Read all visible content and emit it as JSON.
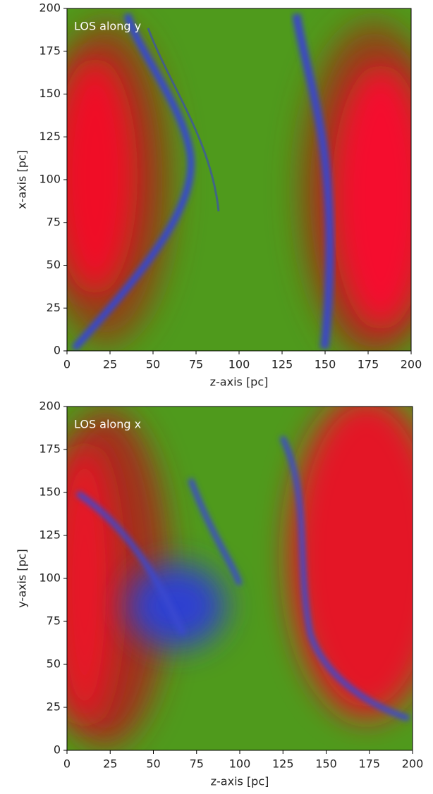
{
  "chart_data": [
    {
      "type": "image",
      "annotation": "LOS along y",
      "xlabel": "z-axis [pc]",
      "ylabel": "x-axis [pc]",
      "xlim": [
        0,
        200
      ],
      "ylim": [
        0,
        200
      ],
      "xticks": [
        0,
        25,
        50,
        75,
        100,
        125,
        150,
        175,
        200
      ],
      "yticks": [
        0,
        25,
        50,
        75,
        100,
        125,
        150,
        175,
        200
      ]
    },
    {
      "type": "image",
      "annotation": "LOS along x",
      "xlabel": "z-axis [pc]",
      "ylabel": "y-axis [pc]",
      "xlim": [
        0,
        200
      ],
      "ylim": [
        0,
        200
      ],
      "xticks": [
        0,
        25,
        50,
        75,
        100,
        125,
        150,
        175,
        200
      ],
      "yticks": [
        0,
        25,
        50,
        75,
        100,
        125,
        150,
        175,
        200
      ]
    }
  ]
}
